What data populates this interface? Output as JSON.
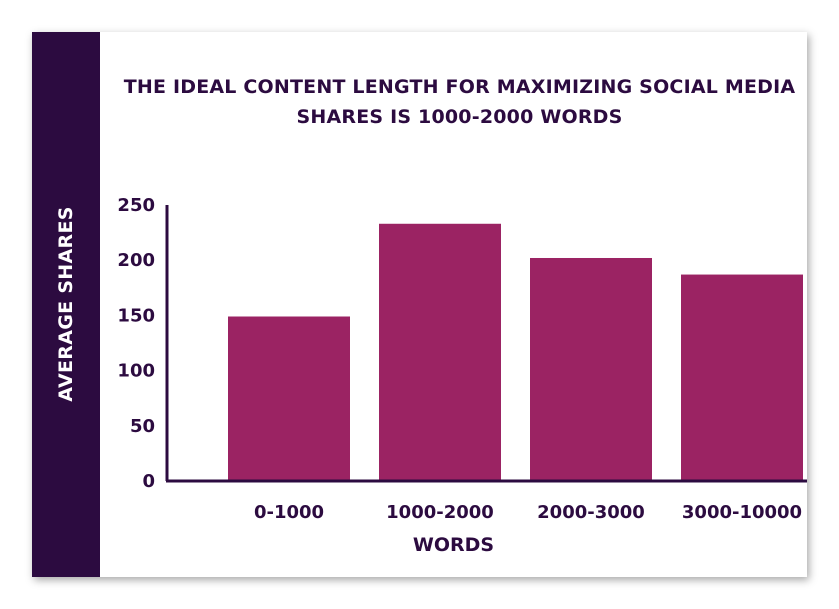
{
  "chart_data": {
    "type": "bar",
    "title": "THE IDEAL CONTENT LENGTH FOR MAXIMIZING SOCIAL MEDIA SHARES IS 1000-2000 WORDS",
    "xlabel": "WORDS",
    "ylabel": "AVERAGE SHARES",
    "categories": [
      "0-1000",
      "1000-2000",
      "2000-3000",
      "3000-10000"
    ],
    "values": [
      149,
      233,
      202,
      187
    ],
    "ylim": [
      0,
      250
    ],
    "yticks": [
      0,
      50,
      100,
      150,
      200,
      250
    ],
    "grid": false,
    "legend": "none",
    "bar_color": "#9b2363",
    "axis_color": "#2c0b40",
    "text_color": "#2c0b40",
    "band_color": "#2c0b40"
  }
}
